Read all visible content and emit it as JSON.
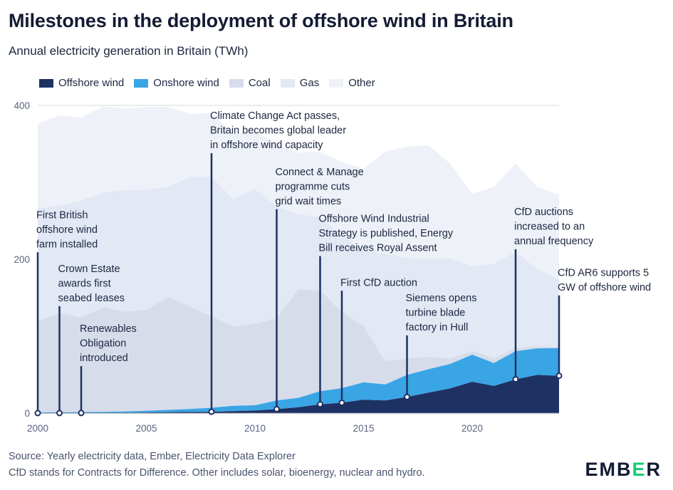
{
  "title": "Milestones in the deployment of offshore wind in Britain",
  "subtitle": "Annual electricity generation in Britain (TWh)",
  "legend": [
    {
      "name": "Offshore wind",
      "color": "#1e3163"
    },
    {
      "name": "Onshore wind",
      "color": "#3aa5e5"
    },
    {
      "name": "Coal",
      "color": "#d7dceb"
    },
    {
      "name": "Gas",
      "color": "#e2e8f4"
    },
    {
      "name": "Other",
      "color": "#eef1f8"
    }
  ],
  "footer": {
    "line1": "Source: Yearly electricity data, Ember, Electricity Data Explorer",
    "line2": "CfD stands for Contracts for Difference. Other includes solar, bioenergy, nuclear and hydro."
  },
  "logo": {
    "prefix": "EMB",
    "accent": "E",
    "suffix": "R"
  },
  "chart_data": {
    "type": "area",
    "title": "Annual electricity generation in Britain (TWh)",
    "xlabel": "",
    "ylabel": "TWh",
    "xlim": [
      2000,
      2024
    ],
    "ylim": [
      0,
      400
    ],
    "x_ticks": [
      2000,
      2005,
      2010,
      2015,
      2020
    ],
    "y_ticks": [
      0,
      200,
      400
    ],
    "grid": "horizontal",
    "stacked": true,
    "x": [
      2000,
      2001,
      2002,
      2003,
      2004,
      2005,
      2006,
      2007,
      2008,
      2009,
      2010,
      2011,
      2012,
      2013,
      2014,
      2015,
      2016,
      2017,
      2018,
      2019,
      2020,
      2021,
      2022,
      2023,
      2024
    ],
    "series": [
      {
        "name": "Offshore wind",
        "values": [
          0,
          0,
          0.1,
          0.3,
          0.5,
          0.8,
          1.2,
          1.5,
          1.7,
          2.5,
          3.3,
          5.1,
          7.6,
          11.4,
          13.4,
          17.4,
          16.4,
          20.9,
          26.7,
          32.1,
          40.7,
          35.3,
          43.9,
          49.6,
          48.5
        ]
      },
      {
        "name": "Onshore wind",
        "values": [
          0.8,
          1,
          1.2,
          1.2,
          1.5,
          2.2,
          3,
          3.8,
          5.2,
          6.9,
          6.9,
          11.3,
          12.2,
          17.1,
          19,
          22.6,
          20.8,
          28.7,
          30.4,
          31.9,
          35.2,
          29.8,
          36.6,
          34.6,
          36.0
        ]
      },
      {
        "name": "Coal",
        "values": [
          119,
          129,
          123,
          136,
          130,
          131,
          147,
          133,
          119,
          103,
          106,
          107,
          141,
          131,
          99,
          73,
          30,
          22,
          16,
          7,
          5,
          6,
          4,
          3,
          1
        ]
      },
      {
        "name": "Gas",
        "values": [
          146,
          140,
          152,
          149,
          158,
          156,
          143,
          169,
          181,
          166,
          175,
          145,
          98,
          95,
          100,
          98,
          140,
          130,
          127,
          130,
          110,
          123,
          125,
          100,
          88
        ]
      },
      {
        "name": "Other",
        "values": [
          110,
          117,
          108,
          112,
          106,
          108,
          104,
          82,
          83,
          85,
          76,
          80,
          80,
          85,
          95,
          107,
          133,
          145,
          148,
          123,
          94,
          100,
          115,
          107,
          110
        ]
      }
    ],
    "annotations": [
      {
        "year": 2000,
        "top": 209,
        "lines": [
          "First British",
          "offshore wind",
          "farm installed"
        ]
      },
      {
        "year": 2001,
        "top": 139,
        "lines": [
          "Crown Estate",
          "awards first",
          "seabed leases"
        ]
      },
      {
        "year": 2002,
        "top": 61,
        "lines": [
          "Renewables",
          "Obligation",
          "introduced"
        ]
      },
      {
        "year": 2008,
        "top": 338,
        "lines": [
          "Climate Change Act passes,",
          "Britain becomes global leader",
          "in offshore wind capacity"
        ]
      },
      {
        "year": 2011,
        "top": 265,
        "lines": [
          "Connect & Manage",
          "programme cuts",
          "grid wait times"
        ]
      },
      {
        "year": 2013,
        "top": 204,
        "lines": [
          "Offshore Wind Industrial",
          "Strategy is published, Energy",
          "Bill receives Royal Assent"
        ]
      },
      {
        "year": 2014,
        "top": 159,
        "lines": [
          "First CfD auction"
        ]
      },
      {
        "year": 2017,
        "top": 101,
        "lines": [
          "Siemens opens",
          "turbine blade",
          "factory in Hull"
        ]
      },
      {
        "year": 2022,
        "top": 213,
        "lines": [
          "CfD auctions",
          "increased to an",
          "annual frequency"
        ]
      },
      {
        "year": 2024,
        "top": 153,
        "lines": [
          "CfD AR6 supports 5",
          "GW of offshore wind"
        ]
      }
    ]
  }
}
